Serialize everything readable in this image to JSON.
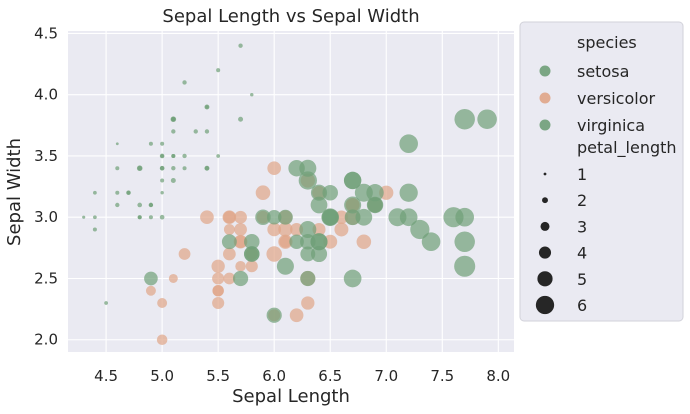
{
  "chart_data": {
    "type": "scatter",
    "title": "Sepal Length vs Sepal Width",
    "xlabel": "Sepal Length",
    "ylabel": "Sepal Width",
    "xlim": [
      4.16,
      8.14
    ],
    "ylim": [
      1.9,
      4.52
    ],
    "xticks": [
      4.5,
      5.0,
      5.5,
      6.0,
      6.5,
      7.0,
      7.5,
      8.0
    ],
    "xtick_labels": [
      "4.5",
      "5.0",
      "5.5",
      "6.0",
      "6.5",
      "7.0",
      "7.5",
      "8.0"
    ],
    "yticks": [
      2.0,
      2.5,
      3.0,
      3.5,
      4.0,
      4.5
    ],
    "ytick_labels": [
      "2.0",
      "2.5",
      "3.0",
      "3.5",
      "4.0",
      "4.5"
    ],
    "grid": true,
    "legend_placement": "outside right",
    "hue_title": "species",
    "size_title": "petal_length",
    "size_legend": [
      {
        "label": "1",
        "value": 1
      },
      {
        "label": "2",
        "value": 2
      },
      {
        "label": "3",
        "value": 3
      },
      {
        "label": "4",
        "value": 4
      },
      {
        "label": "5",
        "value": 5
      },
      {
        "label": "6",
        "value": 6
      }
    ],
    "series": [
      {
        "name": "setosa",
        "color": "#6f9f78",
        "points": [
          [
            5.1,
            3.5,
            1.4
          ],
          [
            4.9,
            3.0,
            1.4
          ],
          [
            4.7,
            3.2,
            1.3
          ],
          [
            4.6,
            3.1,
            1.5
          ],
          [
            5.0,
            3.6,
            1.4
          ],
          [
            5.4,
            3.9,
            1.7
          ],
          [
            4.6,
            3.4,
            1.4
          ],
          [
            5.0,
            3.4,
            1.5
          ],
          [
            4.4,
            2.9,
            1.4
          ],
          [
            4.9,
            3.1,
            1.5
          ],
          [
            5.4,
            3.7,
            1.5
          ],
          [
            4.8,
            3.4,
            1.6
          ],
          [
            4.8,
            3.0,
            1.4
          ],
          [
            4.3,
            3.0,
            1.1
          ],
          [
            5.8,
            4.0,
            1.2
          ],
          [
            5.7,
            4.4,
            1.5
          ],
          [
            5.4,
            3.9,
            1.3
          ],
          [
            5.1,
            3.5,
            1.4
          ],
          [
            5.7,
            3.8,
            1.7
          ],
          [
            5.1,
            3.8,
            1.5
          ],
          [
            5.4,
            3.4,
            1.7
          ],
          [
            5.1,
            3.7,
            1.5
          ],
          [
            4.6,
            3.6,
            1.0
          ],
          [
            5.1,
            3.3,
            1.7
          ],
          [
            4.8,
            3.4,
            1.9
          ],
          [
            5.0,
            3.0,
            1.6
          ],
          [
            5.0,
            3.4,
            1.6
          ],
          [
            5.2,
            3.5,
            1.5
          ],
          [
            5.2,
            3.4,
            1.4
          ],
          [
            4.7,
            3.2,
            1.6
          ],
          [
            4.8,
            3.1,
            1.6
          ],
          [
            5.4,
            3.4,
            1.5
          ],
          [
            5.2,
            4.1,
            1.5
          ],
          [
            5.5,
            4.2,
            1.4
          ],
          [
            4.9,
            3.1,
            1.5
          ],
          [
            5.0,
            3.2,
            1.2
          ],
          [
            5.5,
            3.5,
            1.3
          ],
          [
            4.9,
            3.6,
            1.4
          ],
          [
            4.4,
            3.0,
            1.3
          ],
          [
            5.1,
            3.4,
            1.5
          ],
          [
            5.0,
            3.5,
            1.3
          ],
          [
            4.5,
            2.3,
            1.3
          ],
          [
            4.4,
            3.2,
            1.3
          ],
          [
            5.0,
            3.5,
            1.6
          ],
          [
            5.1,
            3.8,
            1.9
          ],
          [
            4.8,
            3.0,
            1.4
          ],
          [
            5.1,
            3.8,
            1.6
          ],
          [
            4.6,
            3.2,
            1.4
          ],
          [
            5.3,
            3.7,
            1.5
          ],
          [
            5.0,
            3.3,
            1.4
          ]
        ]
      },
      {
        "name": "versicolor",
        "color": "#e0a587",
        "points": [
          [
            7.0,
            3.2,
            4.7
          ],
          [
            6.4,
            3.2,
            4.5
          ],
          [
            6.9,
            3.1,
            4.9
          ],
          [
            5.5,
            2.3,
            4.0
          ],
          [
            6.5,
            2.8,
            4.6
          ],
          [
            5.7,
            2.8,
            4.5
          ],
          [
            6.3,
            3.3,
            4.7
          ],
          [
            4.9,
            2.4,
            3.3
          ],
          [
            6.6,
            2.9,
            4.6
          ],
          [
            5.2,
            2.7,
            3.9
          ],
          [
            5.0,
            2.0,
            3.5
          ],
          [
            5.9,
            3.0,
            4.2
          ],
          [
            6.0,
            2.2,
            4.0
          ],
          [
            6.1,
            2.9,
            4.7
          ],
          [
            5.6,
            2.9,
            3.6
          ],
          [
            6.7,
            3.1,
            4.4
          ],
          [
            5.6,
            3.0,
            4.5
          ],
          [
            5.8,
            2.7,
            4.1
          ],
          [
            6.2,
            2.2,
            4.5
          ],
          [
            5.6,
            2.5,
            3.9
          ],
          [
            5.9,
            3.2,
            4.8
          ],
          [
            6.1,
            2.8,
            4.0
          ],
          [
            6.3,
            2.5,
            4.9
          ],
          [
            6.1,
            2.8,
            4.7
          ],
          [
            6.4,
            2.9,
            4.3
          ],
          [
            6.6,
            3.0,
            4.4
          ],
          [
            6.8,
            2.8,
            4.8
          ],
          [
            6.7,
            3.0,
            5.0
          ],
          [
            6.0,
            2.9,
            4.5
          ],
          [
            5.7,
            2.6,
            3.5
          ],
          [
            5.5,
            2.4,
            3.8
          ],
          [
            5.5,
            2.4,
            3.7
          ],
          [
            5.8,
            2.7,
            3.9
          ],
          [
            6.0,
            2.7,
            5.1
          ],
          [
            5.4,
            3.0,
            4.5
          ],
          [
            6.0,
            3.4,
            4.5
          ],
          [
            6.7,
            3.1,
            4.7
          ],
          [
            6.3,
            2.3,
            4.4
          ],
          [
            5.6,
            3.0,
            4.1
          ],
          [
            5.5,
            2.5,
            4.0
          ],
          [
            5.5,
            2.6,
            4.4
          ],
          [
            6.1,
            3.0,
            4.6
          ],
          [
            5.8,
            2.6,
            4.0
          ],
          [
            5.0,
            2.3,
            3.3
          ],
          [
            5.6,
            2.7,
            4.2
          ],
          [
            5.7,
            3.0,
            4.2
          ],
          [
            5.7,
            2.9,
            4.2
          ],
          [
            6.2,
            2.9,
            4.3
          ],
          [
            5.1,
            2.5,
            3.0
          ],
          [
            5.7,
            2.8,
            4.1
          ]
        ]
      },
      {
        "name": "virginica",
        "color": "#6f9f78",
        "points": [
          [
            6.3,
            3.3,
            6.0
          ],
          [
            5.8,
            2.7,
            5.1
          ],
          [
            7.1,
            3.0,
            5.9
          ],
          [
            6.3,
            2.9,
            5.6
          ],
          [
            6.5,
            3.0,
            5.8
          ],
          [
            7.6,
            3.0,
            6.6
          ],
          [
            4.9,
            2.5,
            4.5
          ],
          [
            7.3,
            2.9,
            6.3
          ],
          [
            6.7,
            2.5,
            5.8
          ],
          [
            7.2,
            3.6,
            6.1
          ],
          [
            6.5,
            3.2,
            5.1
          ],
          [
            6.4,
            2.7,
            5.3
          ],
          [
            6.8,
            3.0,
            5.5
          ],
          [
            5.7,
            2.5,
            5.0
          ],
          [
            5.8,
            2.8,
            5.1
          ],
          [
            6.4,
            3.2,
            5.3
          ],
          [
            6.5,
            3.0,
            5.5
          ],
          [
            7.7,
            3.8,
            6.7
          ],
          [
            7.7,
            2.6,
            6.9
          ],
          [
            6.0,
            2.2,
            5.0
          ],
          [
            6.9,
            3.2,
            5.7
          ],
          [
            5.6,
            2.8,
            4.9
          ],
          [
            7.7,
            2.8,
            6.7
          ],
          [
            6.3,
            2.7,
            4.9
          ],
          [
            6.7,
            3.3,
            5.7
          ],
          [
            7.2,
            3.2,
            6.0
          ],
          [
            6.2,
            2.8,
            4.8
          ],
          [
            6.1,
            3.0,
            4.9
          ],
          [
            6.4,
            2.8,
            5.6
          ],
          [
            7.2,
            3.0,
            5.8
          ],
          [
            7.4,
            2.8,
            6.1
          ],
          [
            7.9,
            3.8,
            6.4
          ],
          [
            6.4,
            2.8,
            5.6
          ],
          [
            6.3,
            2.8,
            5.1
          ],
          [
            6.1,
            2.6,
            5.6
          ],
          [
            7.7,
            3.0,
            6.1
          ],
          [
            6.3,
            3.4,
            5.6
          ],
          [
            6.4,
            3.1,
            5.5
          ],
          [
            6.0,
            3.0,
            4.8
          ],
          [
            6.9,
            3.1,
            5.4
          ],
          [
            6.7,
            3.1,
            5.6
          ],
          [
            6.9,
            3.1,
            5.1
          ],
          [
            5.8,
            2.7,
            5.1
          ],
          [
            6.8,
            3.2,
            5.9
          ],
          [
            6.7,
            3.3,
            5.7
          ],
          [
            6.7,
            3.0,
            5.2
          ],
          [
            6.3,
            2.5,
            5.0
          ],
          [
            6.5,
            3.0,
            5.2
          ],
          [
            6.2,
            3.4,
            5.4
          ],
          [
            5.9,
            3.0,
            5.1
          ]
        ]
      }
    ]
  }
}
